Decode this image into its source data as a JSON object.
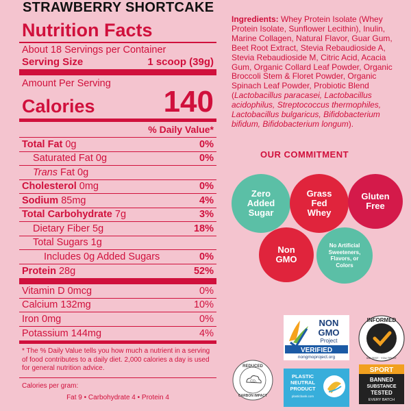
{
  "flavor": "STRAWBERRY SHORTCAKE",
  "nutrition": {
    "title": "Nutrition Facts",
    "servings_per_container": "About 18 Servings per Container",
    "serving_size_label": "Serving Size",
    "serving_size_value": "1 scoop (39g)",
    "amount_per_serving": "Amount Per Serving",
    "calories_label": "Calories",
    "calories_value": "140",
    "dv_header": "% Daily Value*",
    "rows": [
      {
        "label_bold": "Total Fat",
        "label_rest": " 0g",
        "pct": "0%"
      },
      {
        "label": "Saturated Fat 0g",
        "pct": "0%"
      },
      {
        "label_italic": "Trans",
        "label_rest": " Fat 0g",
        "pct": ""
      },
      {
        "label_bold": "Cholesterol",
        "label_rest": " 0mg",
        "pct": "0%"
      },
      {
        "label_bold": "Sodium",
        "label_rest": " 85mg",
        "pct": "4%"
      },
      {
        "label_bold": "Total Carbohydrate",
        "label_rest": " 7g",
        "pct": "3%"
      },
      {
        "label": "Dietary Fiber 5g",
        "pct": "18%"
      },
      {
        "label": "Total Sugars 1g",
        "pct": ""
      },
      {
        "label": "Includes 0g Added Sugars",
        "pct": "0%"
      },
      {
        "label_bold": "Protein",
        "label_rest": " 28g",
        "pct": "52%"
      }
    ],
    "vitamins": [
      {
        "label": "Vitamin D 0mcg",
        "pct": "0%"
      },
      {
        "label": "Calcium 132mg",
        "pct": "10%"
      },
      {
        "label": "Iron 0mg",
        "pct": "0%"
      },
      {
        "label": "Potassium 144mg",
        "pct": "4%"
      }
    ],
    "footnote": "* The % Daily Value tells you how much a nutrient in a serving of food contributes to a daily diet. 2,000 calories a day is used for general nutrition advice.",
    "calories_per_gram_label": "Calories per gram:",
    "calories_per_gram_values": "Fat 9 • Carbohydrate 4 • Protein 4"
  },
  "ingredients": {
    "label": "Ingredients:",
    "text_1": " Whey Protein Isolate (Whey Protein Isolate, Sunflower Lecithin), Inulin, Marine Collagen, Natural Flavor, Guar Gum, Beet Root Extract, Stevia Rebaudioside A, Stevia Rebaudioside M, Citric Acid, Acacia Gum, Organic Collard Leaf Powder, Organic Broccoli Stem & Floret Powder, Organic Spinach Leaf Powder, Probiotic Blend (",
    "italic_1": "Lactobacillus paracasei, Lactobacillus acidophilus, Streptococcus thermophiles, Lactobacillus bulgaricus, Bifidobacterium bifidum, Bifidobacterium longum",
    "text_2": ")."
  },
  "commitment": {
    "title": "OUR COMMITMENT",
    "badges": [
      {
        "l1": "Zero",
        "l2": "Added",
        "l3": "Sugar"
      },
      {
        "l1": "Grass",
        "l2": "Fed",
        "l3": "Whey"
      },
      {
        "l1": "Gluten",
        "l2": "Free"
      },
      {
        "l1": "Non",
        "l2": "GMO"
      },
      {
        "l1": "No Artificial",
        "l2": "Sweeteners,",
        "l3": "Flavors, or",
        "l4": "Colors"
      }
    ]
  },
  "certifications": {
    "reduced_carbon": {
      "top": "REDUCED",
      "bottom": "CARBON IMPACT",
      "center": "CO₂"
    },
    "non_gmo": {
      "l1": "NON",
      "l2": "GMO",
      "l3": "Project",
      "verified": "VERIFIED",
      "url": "nongmoproject.org"
    },
    "plastic_neutral": {
      "l1": "PLASTIC",
      "l2": "NEUTRAL",
      "l3": "PRODUCT",
      "l4": "plasticbank.com"
    },
    "informed_sport": {
      "ring": "INFORMED",
      "sub": "WE TEST · YOU TRUST",
      "sport": "SPORT",
      "b1": "BANNED",
      "b2": "SUBSTANCE",
      "b3": "TESTED",
      "b4": "EVERY BATCH"
    }
  },
  "colors": {
    "background": "#f4c4cf",
    "label_red": "#d0103c",
    "teal": "#5bbfa6",
    "red": "#e0243c"
  }
}
